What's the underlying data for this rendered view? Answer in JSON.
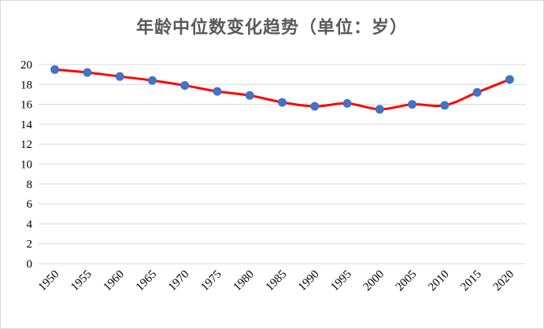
{
  "chart_data": {
    "type": "line",
    "title": "年龄中位数变化趋势（单位：岁）",
    "x": [
      "1950",
      "1955",
      "1960",
      "1965",
      "1970",
      "1975",
      "1980",
      "1985",
      "1990",
      "1995",
      "2000",
      "2005",
      "2010",
      "2015",
      "2020"
    ],
    "series": [
      {
        "values": [
          19.5,
          19.2,
          18.8,
          18.4,
          17.9,
          17.3,
          16.9,
          16.2,
          15.8,
          16.1,
          15.5,
          16.0,
          15.9,
          17.2,
          18.5
        ]
      }
    ],
    "ylim": [
      0,
      20
    ],
    "yticks": [
      "0",
      "2",
      "4",
      "6",
      "8",
      "10",
      "12",
      "14",
      "16",
      "18",
      "20"
    ],
    "xlabel": "",
    "ylabel": "",
    "grid": true,
    "legend": "none",
    "colors": {
      "line": "#ff0000",
      "marker": "#4472c4",
      "grid": "#d9d9d9"
    }
  }
}
